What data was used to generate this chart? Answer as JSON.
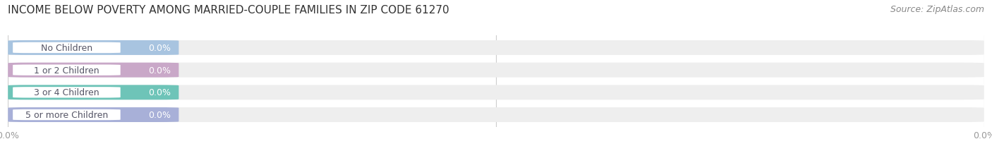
{
  "title": "INCOME BELOW POVERTY AMONG MARRIED-COUPLE FAMILIES IN ZIP CODE 61270",
  "source": "Source: ZipAtlas.com",
  "categories": [
    "No Children",
    "1 or 2 Children",
    "3 or 4 Children",
    "5 or more Children"
  ],
  "values": [
    0.0,
    0.0,
    0.0,
    0.0
  ],
  "bar_colors": [
    "#a8c4e0",
    "#c9a8c8",
    "#6ec4b8",
    "#a8b0d8"
  ],
  "bar_label_text_color": "#666688",
  "value_label_color": "#ffffff",
  "background_color": "#ffffff",
  "title_fontsize": 11,
  "source_fontsize": 9,
  "bar_height": 0.62,
  "label_fontsize": 9,
  "value_fontsize": 9,
  "grid_color": "#cccccc",
  "tick_color": "#999999",
  "tick_fontsize": 9
}
